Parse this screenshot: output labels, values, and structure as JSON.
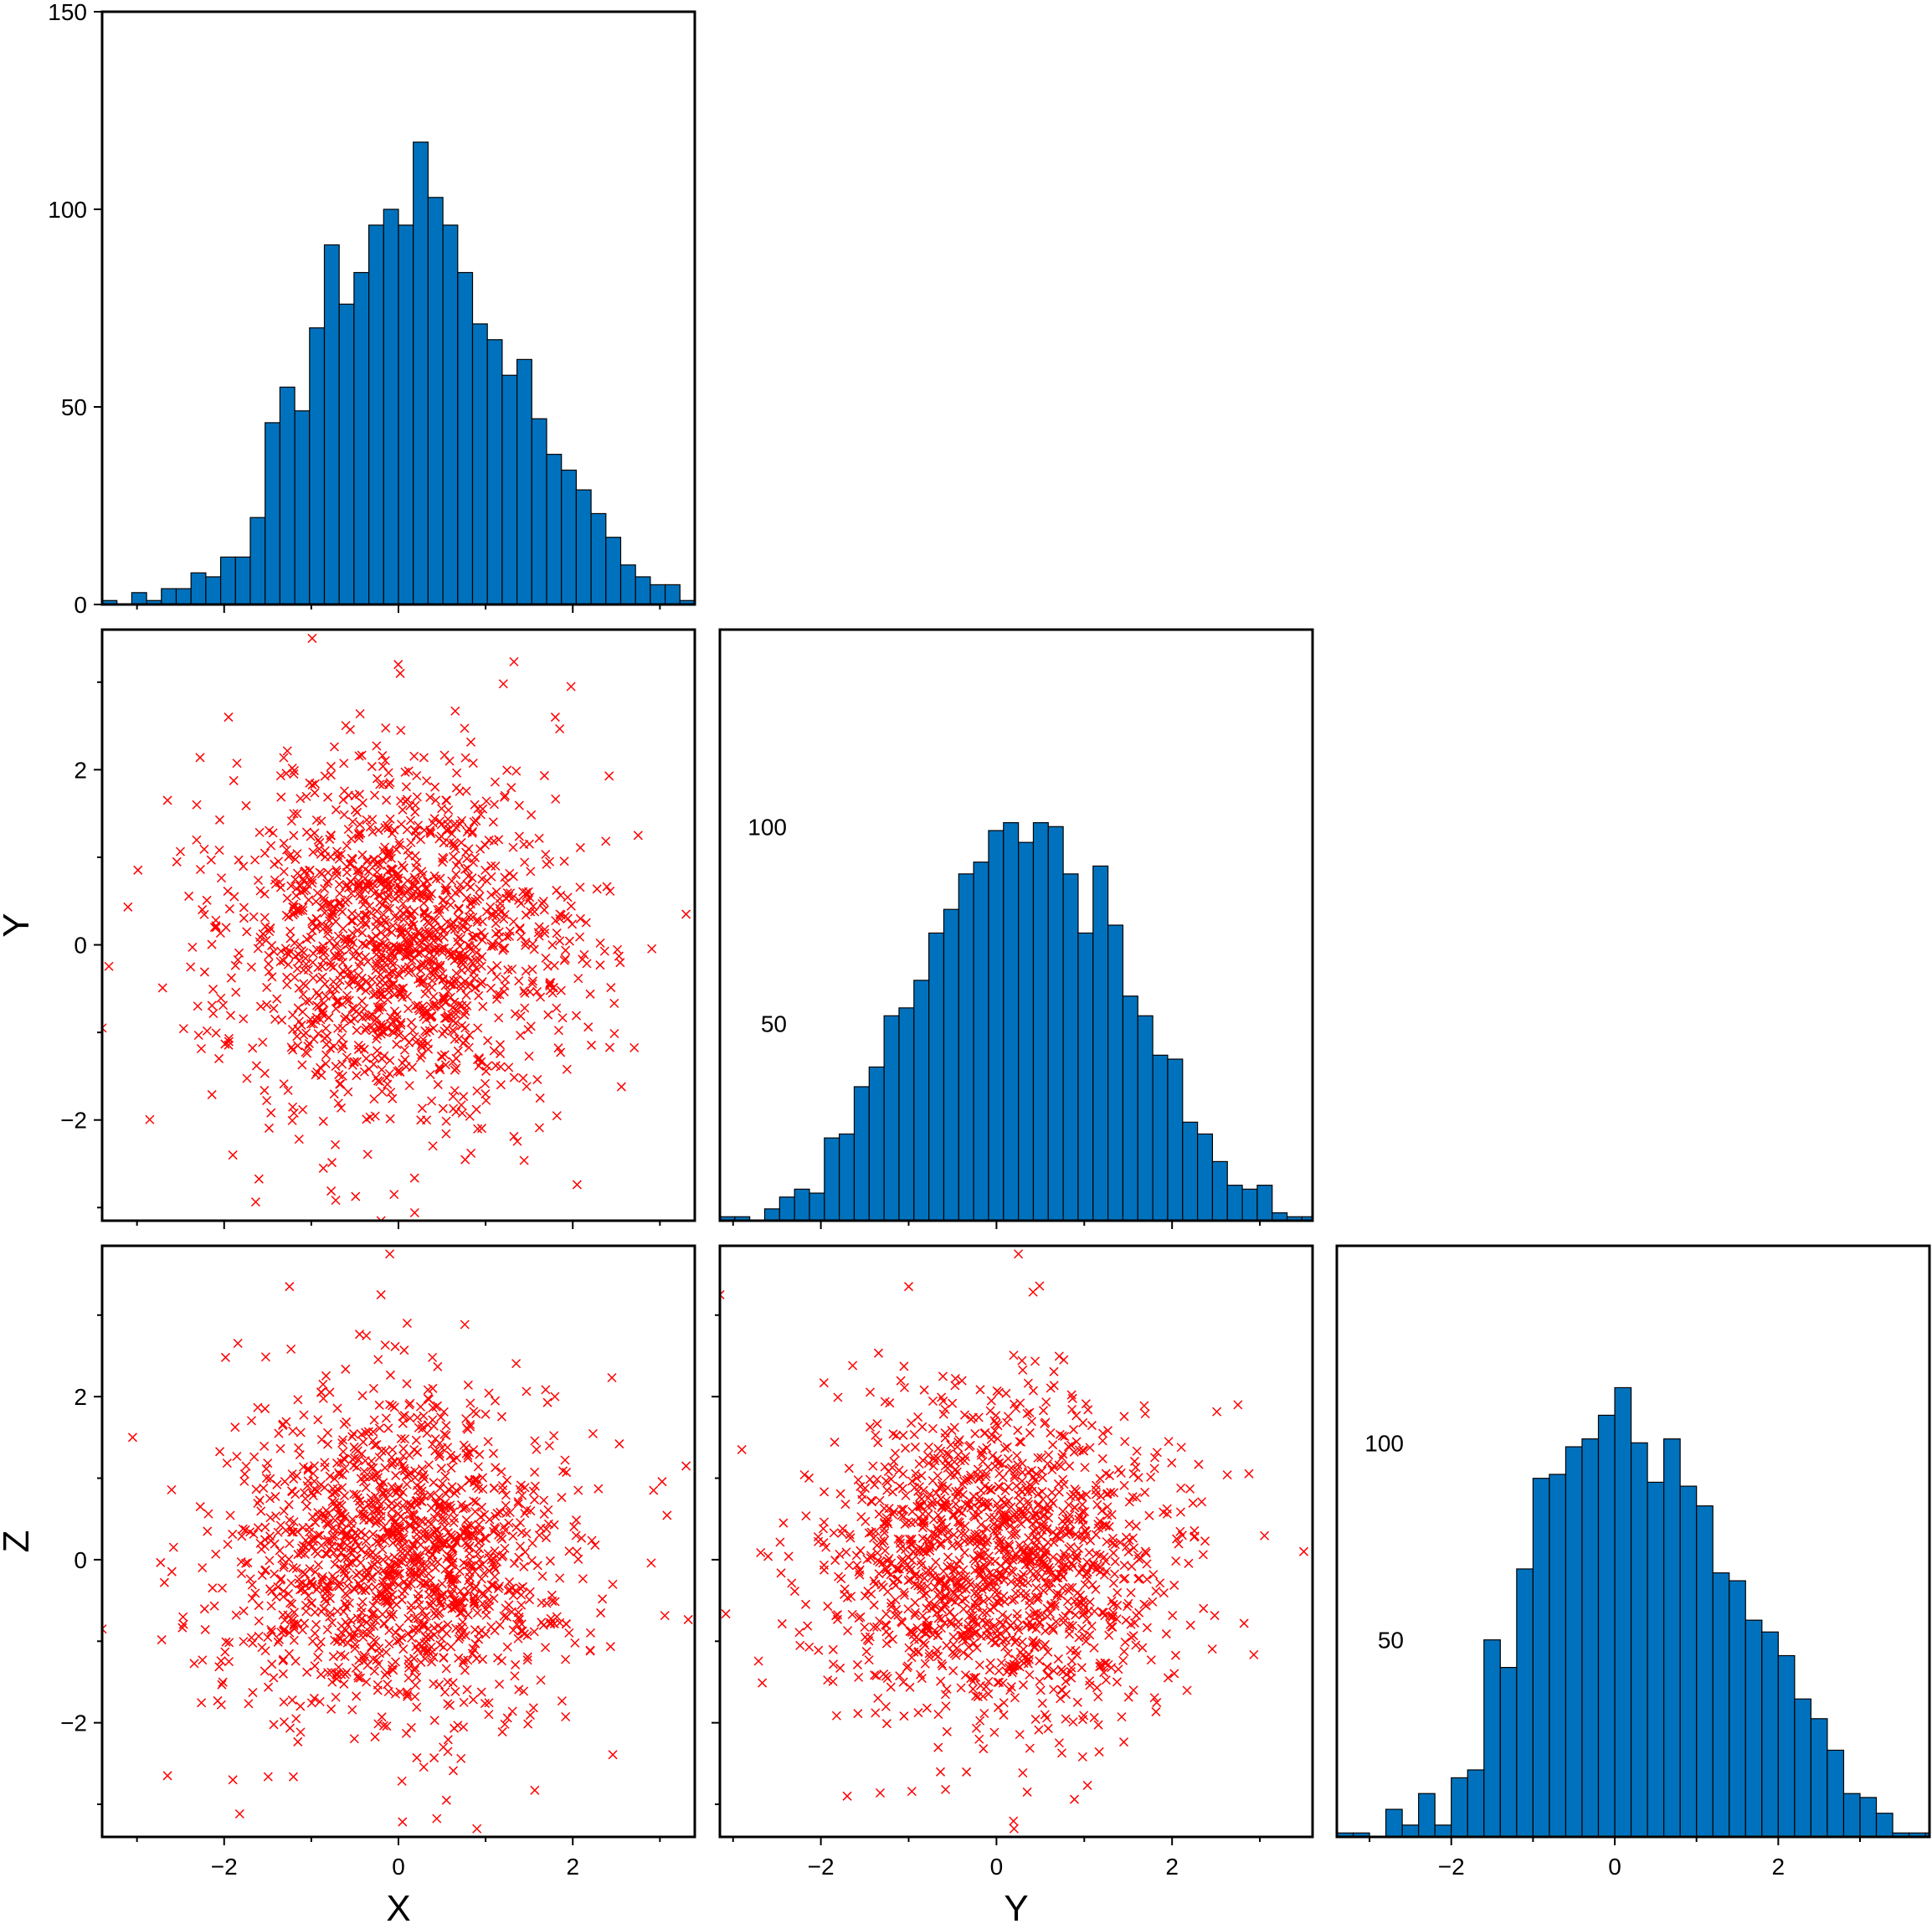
{
  "chart_data": [
    {
      "id": "hist-x",
      "type": "bar",
      "series_color": "#0072bd",
      "bin_edges_start": -3.4,
      "bin_width": 0.17,
      "values": [
        1,
        0,
        3,
        1,
        4,
        4,
        8,
        7,
        12,
        12,
        22,
        46,
        55,
        49,
        70,
        91,
        76,
        84,
        96,
        100,
        96,
        117,
        103,
        96,
        84,
        71,
        67,
        58,
        62,
        47,
        38,
        34,
        29,
        23,
        17,
        10,
        7,
        5,
        5,
        1,
        1
      ],
      "xlim": [
        -3.4,
        3.4
      ],
      "ylim": [
        0,
        150
      ],
      "xticks": [
        -2,
        0,
        2
      ],
      "xtick_labels": [
        "",
        "",
        ""
      ],
      "yticks": [
        0,
        50,
        100,
        150
      ],
      "ytick_labels": [
        "0",
        "50",
        "100",
        "150"
      ],
      "xlabel": "",
      "ylabel": ""
    },
    {
      "id": "scatter-x-y",
      "type": "scatter",
      "marker": "x",
      "series_color": "#ff0000",
      "n_points": 1500,
      "point_summary": {
        "x_mean": 0.0,
        "x_std": 1.0,
        "y_mean": 0.0,
        "y_std": 1.0,
        "correlation": 0.0
      },
      "highlighted_points": [
        [
          -0.99,
          3.5
        ],
        [
          0.02,
          3.1
        ],
        [
          1.98,
          2.95
        ],
        [
          -2.65,
          1.65
        ],
        [
          3.3,
          0.35
        ],
        [
          -3.4,
          -0.95
        ],
        [
          -1.9,
          -2.4
        ],
        [
          -0.2,
          -3.15
        ],
        [
          -0.05,
          -2.85
        ],
        [
          2.75,
          1.25
        ],
        [
          1.8,
          2.6
        ],
        [
          -1.95,
          2.6
        ]
      ],
      "xlim": [
        -3.4,
        3.4
      ],
      "ylim": [
        -3.15,
        3.6
      ],
      "xticks": [
        -2,
        0,
        2
      ],
      "xtick_labels": [
        "",
        "",
        ""
      ],
      "yticks": [
        -2,
        0,
        2
      ],
      "ytick_labels": [
        "−2",
        "0",
        "2"
      ],
      "xlabel": "",
      "ylabel": "Y"
    },
    {
      "id": "hist-y",
      "type": "bar",
      "series_color": "#0072bd",
      "bin_edges_start": -3.15,
      "bin_width": 0.17,
      "values": [
        1,
        1,
        0,
        3,
        6,
        8,
        7,
        21,
        22,
        34,
        39,
        52,
        54,
        61,
        73,
        79,
        88,
        91,
        99,
        101,
        96,
        101,
        100,
        88,
        73,
        90,
        75,
        57,
        52,
        42,
        41,
        25,
        22,
        15,
        9,
        8,
        9,
        2,
        1,
        1
      ],
      "xlim": [
        -3.15,
        3.6
      ],
      "ylim": [
        0,
        150
      ],
      "xticks": [
        -2,
        0,
        2
      ],
      "xtick_labels": [
        "",
        "",
        ""
      ],
      "yticks": [
        50,
        100
      ],
      "ytick_labels": [
        "50",
        "100"
      ],
      "xlabel": "",
      "ylabel": ""
    },
    {
      "id": "scatter-x-z",
      "type": "scatter",
      "marker": "x",
      "series_color": "#ff0000",
      "n_points": 1500,
      "point_summary": {
        "x_mean": 0.0,
        "x_std": 1.0,
        "y_mean": 0.0,
        "y_std": 1.0,
        "correlation": 0.0
      },
      "highlighted_points": [
        [
          -1.25,
          3.35
        ],
        [
          -0.1,
          3.75
        ],
        [
          -0.2,
          3.25
        ],
        [
          0.1,
          2.9
        ],
        [
          3.3,
          1.15
        ],
        [
          -3.4,
          -0.85
        ],
        [
          -2.65,
          -2.65
        ],
        [
          -1.9,
          -2.7
        ],
        [
          0.9,
          -3.3
        ],
        [
          0.55,
          -2.95
        ],
        [
          -3.05,
          1.5
        ]
      ],
      "xlim": [
        -3.4,
        3.4
      ],
      "ylim": [
        -3.4,
        3.85
      ],
      "xticks": [
        -2,
        0,
        2
      ],
      "xtick_labels": [
        "−2",
        "0",
        "2"
      ],
      "yticks": [
        -2,
        0,
        2
      ],
      "ytick_labels": [
        "−2",
        "0",
        "2"
      ],
      "xlabel": "X",
      "ylabel": "Z"
    },
    {
      "id": "scatter-y-z",
      "type": "scatter",
      "marker": "x",
      "series_color": "#ff0000",
      "n_points": 1500,
      "point_summary": {
        "x_mean": 0.0,
        "x_std": 1.0,
        "y_mean": 0.0,
        "y_std": 1.0,
        "correlation": 0.0
      },
      "highlighted_points": [
        [
          -3.15,
          3.25
        ],
        [
          -1.0,
          3.35
        ],
        [
          0.25,
          3.75
        ],
        [
          3.5,
          0.1
        ],
        [
          -1.7,
          -2.9
        ],
        [
          0.2,
          -3.3
        ],
        [
          0.35,
          -2.85
        ],
        [
          2.75,
          1.9
        ],
        [
          -2.9,
          1.35
        ]
      ],
      "xlim": [
        -3.15,
        3.6
      ],
      "ylim": [
        -3.4,
        3.85
      ],
      "xticks": [
        -2,
        0,
        2
      ],
      "xtick_labels": [
        "−2",
        "0",
        "2"
      ],
      "yticks": [
        -2,
        0,
        2
      ],
      "ytick_labels": [
        "",
        "",
        ""
      ],
      "xlabel": "Y",
      "ylabel": ""
    },
    {
      "id": "hist-z",
      "type": "bar",
      "series_color": "#0072bd",
      "bin_edges_start": -3.4,
      "bin_width": 0.2,
      "values": [
        1,
        1,
        0,
        7,
        3,
        11,
        3,
        15,
        17,
        50,
        43,
        68,
        91,
        92,
        99,
        101,
        107,
        114,
        100,
        90,
        101,
        89,
        84,
        67,
        65,
        55,
        52,
        46,
        35,
        30,
        22,
        11,
        10,
        6,
        1,
        1,
        1,
        0,
        3,
        2
      ],
      "xlim": [
        -3.4,
        3.85
      ],
      "ylim": [
        0,
        150
      ],
      "xticks": [
        -2,
        0,
        2
      ],
      "xtick_labels": [
        "−2",
        "0",
        "2"
      ],
      "yticks": [
        50,
        100
      ],
      "ytick_labels": [
        "50",
        "100"
      ],
      "xlabel": "",
      "ylabel": ""
    }
  ]
}
